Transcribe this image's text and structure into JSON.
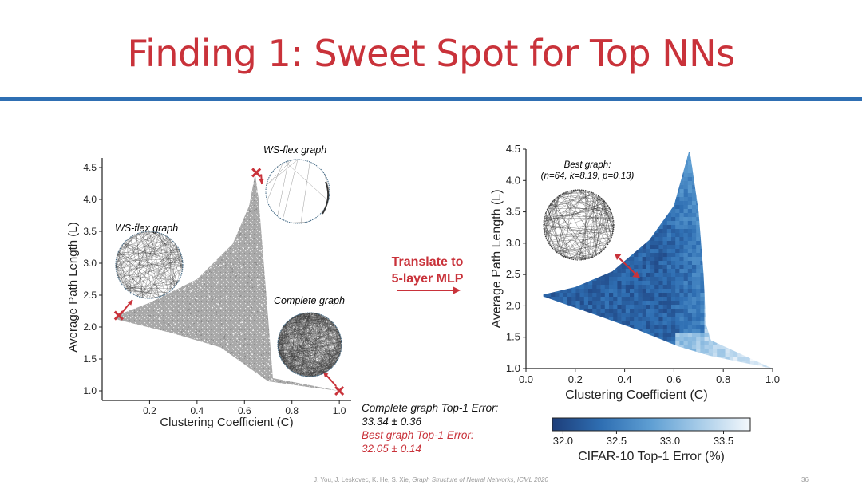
{
  "slide": {
    "title": "Finding 1: Sweet Spot for Top NNs",
    "translate_line1": "Translate to",
    "translate_line2": "5-layer MLP",
    "result_complete_label": "Complete graph Top-1 Error:",
    "result_complete_value": "33.34 ± 0.36",
    "result_best_label": "Best graph Top-1 Error:",
    "result_best_value": "32.05 ± 0.14",
    "footer_authors": "J. You, J. Leskovec, K. He, S. Xie, ",
    "footer_paper": "Graph Structure of Neural Networks, ICML 2020",
    "page_number": "36",
    "accent_color": "#c9323a",
    "rule_color": "#2f6fb3"
  },
  "chart_data": [
    {
      "type": "scatter",
      "title": "",
      "xlabel": "Clustering Coefficient (C)",
      "ylabel": "Average Path Length (L)",
      "xlim": [
        0.0,
        1.05
      ],
      "ylim": [
        0.85,
        4.65
      ],
      "x_ticks": [
        "0.2",
        "0.4",
        "0.6",
        "0.8",
        "1.0"
      ],
      "y_ticks": [
        "1.0",
        "1.5",
        "2.0",
        "2.5",
        "3.0",
        "3.5",
        "4.0",
        "4.5"
      ],
      "point_color": "#a8a8a8",
      "region_boundary": {
        "upper": [
          [
            0.06,
            2.18
          ],
          [
            0.2,
            2.38
          ],
          [
            0.4,
            2.75
          ],
          [
            0.55,
            3.3
          ],
          [
            0.62,
            3.9
          ],
          [
            0.645,
            4.4
          ]
        ],
        "lower": [
          [
            0.06,
            2.12
          ],
          [
            0.3,
            1.9
          ],
          [
            0.5,
            1.68
          ],
          [
            0.7,
            1.15
          ],
          [
            0.85,
            1.07
          ],
          [
            1.0,
            1.0
          ]
        ]
      },
      "annotations": [
        {
          "label": "WS-flex graph",
          "marker_point": [
            0.65,
            4.42
          ]
        },
        {
          "label": "WS-flex graph",
          "marker_point": [
            0.07,
            2.18
          ]
        },
        {
          "label": "Complete graph",
          "marker_point": [
            1.0,
            1.0
          ]
        }
      ]
    },
    {
      "type": "heatmap",
      "title": "",
      "xlabel": "Clustering Coefficient (C)",
      "ylabel": "Average Path Length (L)",
      "xlim": [
        0.0,
        1.0
      ],
      "ylim": [
        1.0,
        4.5
      ],
      "x_ticks": [
        "0.0",
        "0.2",
        "0.4",
        "0.6",
        "0.8",
        "1.0"
      ],
      "y_ticks": [
        "1.0",
        "1.5",
        "2.0",
        "2.5",
        "3.0",
        "3.5",
        "4.0",
        "4.5"
      ],
      "colorbar": {
        "label": "CIFAR-10 Top-1 Error (%)",
        "range": [
          31.9,
          33.75
        ],
        "ticks": [
          "32.0",
          "32.5",
          "33.0",
          "33.5"
        ],
        "low_color": "#1d3e7a",
        "high_color": "#f4f8fc"
      },
      "best_graph": {
        "label_line1": "Best graph:",
        "label_line2": "(n=64, k=8.19, p=0.13)",
        "point": [
          0.46,
          2.45
        ],
        "top1_error": 32.05
      }
    }
  ]
}
